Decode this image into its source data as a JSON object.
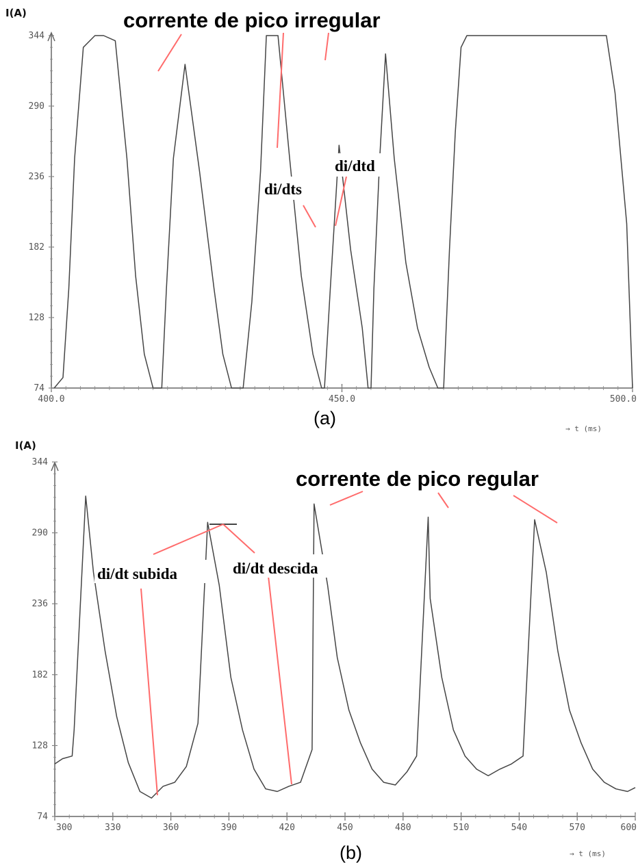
{
  "chart_data": [
    {
      "type": "line",
      "panel_label": "(a)",
      "ylabel": "I(A)",
      "xlabel": "→ t (ms)",
      "xlim": [
        400,
        500
      ],
      "ylim": [
        74,
        344
      ],
      "x_ticks": [
        400,
        450,
        500
      ],
      "x_tick_labels": [
        "400.0",
        "450.0",
        "500.0"
      ],
      "y_ticks": [
        74,
        128,
        182,
        236,
        290,
        344
      ],
      "y_tick_labels": [
        "74",
        "128",
        "182",
        "236",
        "290",
        "344"
      ],
      "grid": false,
      "series": [
        {
          "color": "#444444",
          "x": [
            400.5,
            402.0,
            403.0,
            404.0,
            405.5,
            407.5,
            409.0,
            411.0,
            413.0,
            414.5,
            416.0,
            417.5,
            419.0,
            419.8,
            421.0,
            423.0,
            425.5,
            428.0,
            429.5,
            431.0,
            433.0,
            434.5,
            436.0,
            437.0,
            439.0,
            441.0,
            443.0,
            445.0,
            446.5,
            447.0,
            448.0,
            449.5,
            451.5,
            453.5,
            454.5,
            455.0,
            455.5,
            456.5,
            457.5,
            459.0,
            461.0,
            463.0,
            465.0,
            466.5,
            467.5,
            468.5,
            469.5,
            470.5,
            471.5,
            472.5,
            495.5,
            497.0,
            499.0,
            500.0
          ],
          "y": [
            74,
            82,
            150,
            250,
            335,
            344,
            344,
            340,
            250,
            160,
            100,
            74,
            74,
            150,
            250,
            322,
            240,
            150,
            100,
            74,
            74,
            140,
            240,
            344,
            344,
            250,
            160,
            100,
            74,
            74,
            150,
            260,
            180,
            120,
            74,
            74,
            150,
            250,
            330,
            250,
            170,
            120,
            90,
            74,
            74,
            180,
            270,
            335,
            344,
            344,
            344,
            300,
            200,
            74
          ]
        }
      ],
      "annotations": [
        {
          "text": "corrente de pico irregular",
          "color": "#ff6666"
        },
        {
          "text": "di/dts"
        },
        {
          "text": "di/dtd"
        }
      ]
    },
    {
      "type": "line",
      "panel_label": "(b)",
      "ylabel": "I(A)",
      "xlabel": "→ t (ms)",
      "xlim": [
        300,
        600
      ],
      "ylim": [
        74,
        344
      ],
      "x_ticks": [
        300,
        330,
        360,
        390,
        420,
        450,
        480,
        510,
        540,
        570,
        600
      ],
      "x_tick_labels": [
        "300",
        "330",
        "360",
        "390",
        "420",
        "450",
        "480",
        "510",
        "540",
        "570",
        "600"
      ],
      "y_ticks": [
        74,
        128,
        182,
        236,
        290,
        344
      ],
      "y_tick_labels": [
        "74",
        "128",
        "182",
        "236",
        "290",
        "344"
      ],
      "grid": false,
      "series": [
        {
          "color": "#444444",
          "x": [
            300,
            304,
            309,
            310,
            316,
            320,
            326,
            332,
            338,
            344,
            350,
            356,
            362,
            368,
            374,
            379,
            385,
            391,
            397,
            403,
            409,
            415,
            421,
            427,
            433,
            434,
            441,
            446,
            452,
            458,
            464,
            470,
            476,
            482,
            487,
            493,
            494,
            500,
            506,
            512,
            518,
            524,
            530,
            536,
            542,
            548,
            554,
            560,
            566,
            572,
            578,
            584,
            590,
            596,
            600
          ],
          "y": [
            114,
            118,
            120,
            140,
            318,
            260,
            200,
            150,
            115,
            93,
            88,
            97,
            100,
            112,
            145,
            298,
            250,
            180,
            140,
            110,
            95,
            93,
            97,
            100,
            125,
            312,
            250,
            195,
            155,
            130,
            110,
            100,
            98,
            108,
            120,
            302,
            240,
            180,
            140,
            120,
            110,
            105,
            110,
            114,
            120,
            300,
            260,
            200,
            155,
            130,
            110,
            100,
            95,
            93,
            96
          ]
        }
      ],
      "annotations": [
        {
          "text": "corrente de pico regular",
          "color": "#ff6666"
        },
        {
          "text": "di/dt subida"
        },
        {
          "text": "di/dt descida"
        }
      ]
    }
  ]
}
